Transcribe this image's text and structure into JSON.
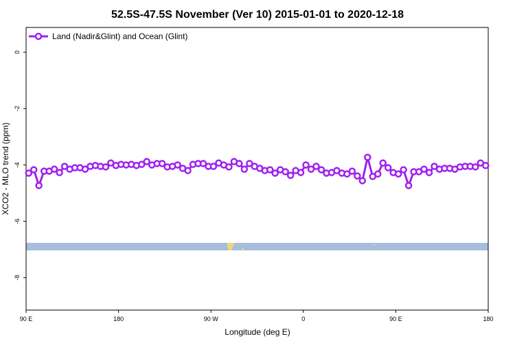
{
  "chart_data": {
    "type": "line",
    "title": "52.5S-47.5S November (Ver 10)   2015-01-01 to 2020-12-18",
    "x_label": "Longitude (deg E)",
    "y_label": "XCO2 - MLO trend (ppm)",
    "xlim": [
      90,
      540
    ],
    "xticks": [
      {
        "value": 90,
        "label": "90 E"
      },
      {
        "value": 180,
        "label": "180"
      },
      {
        "value": 270,
        "label": "90 W"
      },
      {
        "value": 360,
        "label": "0"
      },
      {
        "value": 450,
        "label": "90 E"
      },
      {
        "value": 540,
        "label": "180"
      }
    ],
    "ylim": [
      -9.15,
      0.88
    ],
    "yticks": [
      0,
      -2,
      -4,
      -6,
      -8
    ],
    "legend": "top-left",
    "x": [
      92.5,
      97.5,
      102.5,
      107.5,
      112.5,
      117.5,
      122.5,
      127.5,
      132.5,
      137.5,
      142.5,
      147.5,
      152.5,
      157.5,
      162.5,
      167.5,
      172.5,
      177.5,
      182.5,
      187.5,
      192.5,
      197.5,
      202.5,
      207.5,
      212.5,
      217.5,
      222.5,
      227.5,
      232.5,
      237.5,
      242.5,
      247.5,
      252.5,
      257.5,
      262.5,
      267.5,
      272.5,
      277.5,
      282.5,
      287.5,
      292.5,
      297.5,
      302.5,
      307.5,
      312.5,
      317.5,
      322.5,
      327.5,
      332.5,
      337.5,
      342.5,
      347.5,
      352.5,
      357.5,
      362.5,
      367.5,
      372.5,
      377.5,
      382.5,
      387.5,
      392.5,
      397.5,
      402.5,
      407.5,
      412.5,
      417.5,
      422.5,
      427.5,
      432.5,
      437.5,
      442.5,
      447.5,
      452.5,
      457.5,
      462.5,
      467.5,
      472.5,
      477.5,
      482.5,
      487.5,
      492.5,
      497.5,
      502.5,
      507.5,
      512.5,
      517.5,
      522.5,
      527.5,
      532.5,
      537.5
    ],
    "series": [
      {
        "name": "Land (Nadir&Glint) and Ocean (Glint)",
        "color": "#a020f0",
        "values": [
          -4.29,
          -4.17,
          -4.73,
          -4.22,
          -4.22,
          -4.15,
          -4.27,
          -4.05,
          -4.15,
          -4.1,
          -4.1,
          -4.15,
          -4.05,
          -4.02,
          -4.05,
          -4.07,
          -3.93,
          -4.02,
          -3.98,
          -4.0,
          -3.98,
          -4.02,
          -3.98,
          -3.88,
          -4.0,
          -3.95,
          -3.95,
          -4.07,
          -4.05,
          -4.0,
          -4.12,
          -4.2,
          -3.98,
          -3.95,
          -3.95,
          -4.05,
          -4.05,
          -3.93,
          -4.0,
          -4.07,
          -3.88,
          -3.95,
          -4.15,
          -3.95,
          -4.05,
          -4.12,
          -4.2,
          -4.17,
          -4.29,
          -4.17,
          -4.24,
          -4.37,
          -4.2,
          -4.27,
          -4.0,
          -4.15,
          -4.05,
          -4.17,
          -4.29,
          -4.27,
          -4.2,
          -4.29,
          -4.32,
          -4.22,
          -4.39,
          -4.56,
          -3.73,
          -4.41,
          -4.32,
          -3.93,
          -4.1,
          -4.27,
          -4.32,
          -4.17,
          -4.73,
          -4.24,
          -4.24,
          -4.15,
          -4.27,
          -4.05,
          -4.15,
          -4.12,
          -4.12,
          -4.15,
          -4.07,
          -4.05,
          -4.05,
          -4.07,
          -3.93,
          -4.02
        ]
      }
    ]
  }
}
